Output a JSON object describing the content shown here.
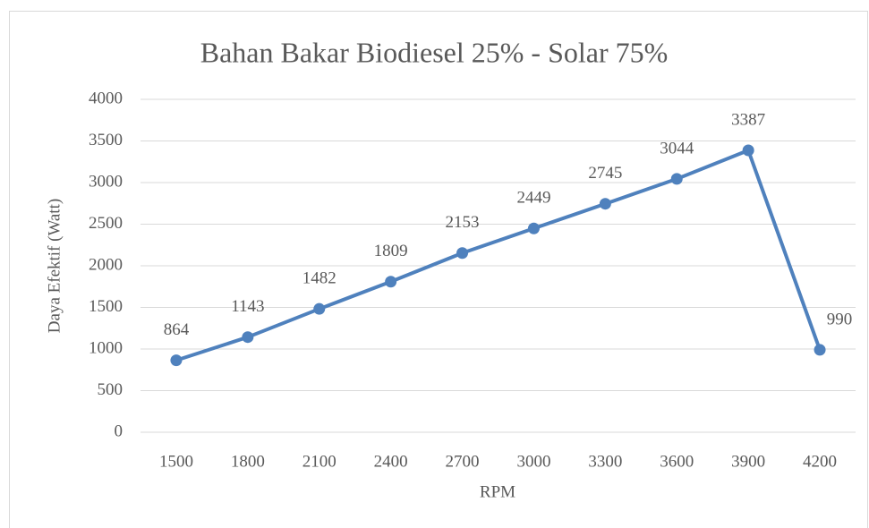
{
  "chart_data": {
    "type": "line",
    "title": "Bahan Bakar Biodiesel 25% - Solar 75%",
    "x_label": "RPM",
    "y_label": "Daya Efektif (Watt)",
    "categories": [
      "1500",
      "1800",
      "2100",
      "2400",
      "2700",
      "3000",
      "3300",
      "3600",
      "3900",
      "4200"
    ],
    "series": [
      {
        "name": "Daya Efektif",
        "color": "#4f81bd",
        "values": [
          864,
          1143,
          1482,
          1809,
          2153,
          2449,
          2745,
          3044,
          3387,
          990
        ]
      }
    ],
    "ylim": [
      0,
      4000
    ],
    "yticks": [
      0,
      500,
      1000,
      1500,
      2000,
      2500,
      3000,
      3500,
      4000
    ],
    "grid": true,
    "data_labels": true
  }
}
